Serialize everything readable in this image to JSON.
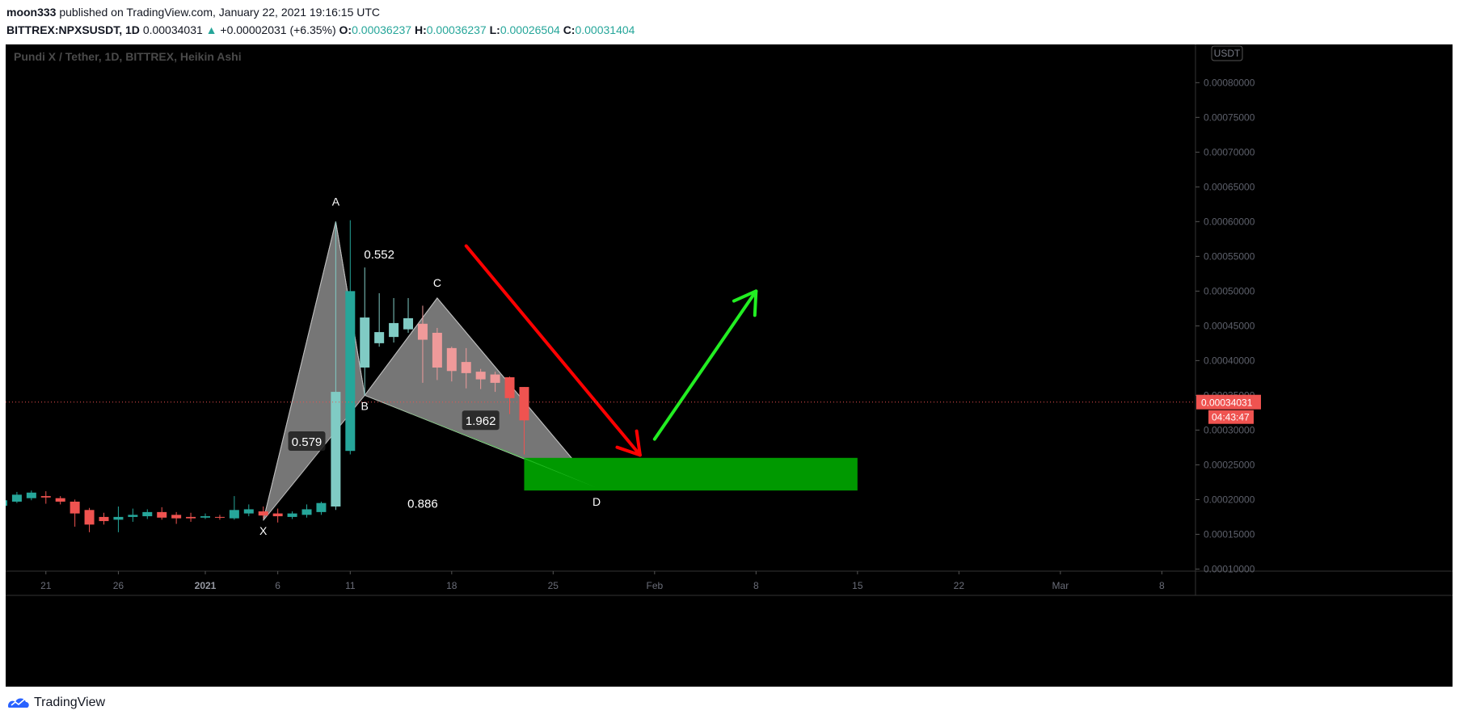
{
  "header": {
    "author": "moon333",
    "published": "published on TradingView.com, January 22, 2021 19:16:15 UTC",
    "symbol": "BITTREX:NPXSUSDT, 1D",
    "price": "0.00034031",
    "change": "+0.00002031 (+6.35%)",
    "o_label": "O:",
    "o_val": "0.00036237",
    "h_label": "H:",
    "h_val": "0.00036237",
    "l_label": "L:",
    "l_val": "0.00026504",
    "c_label": "C:",
    "c_val": "0.00031404"
  },
  "footer": {
    "brand": "TradingView"
  },
  "colors": {
    "background": "#000000",
    "up": "#26a69a",
    "up_light": "#80cbc4",
    "down": "#ef5350",
    "down_light": "#ef9a9a",
    "zone": "#009900",
    "arrow_red": "#ff0000",
    "arrow_green": "#22ee22",
    "pattern": "#9e9e9e"
  },
  "chart_data": {
    "type": "candlestick",
    "title": "Pundi X / Tether, 1D, BITTREX, Heikin Ashi",
    "currency_badge": "USDT",
    "last_price_label": "0.00034031",
    "countdown_label": "04:43:47",
    "x_ticks": [
      {
        "label": "21",
        "date": "2020-12-21"
      },
      {
        "label": "26",
        "date": "2020-12-26"
      },
      {
        "label": "2021",
        "date": "2021-01-01",
        "bold": true
      },
      {
        "label": "6",
        "date": "2021-01-06"
      },
      {
        "label": "11",
        "date": "2021-01-11"
      },
      {
        "label": "18",
        "date": "2021-01-18"
      },
      {
        "label": "25",
        "date": "2021-01-25"
      },
      {
        "label": "Feb",
        "date": "2021-02-01"
      },
      {
        "label": "8",
        "date": "2021-02-08"
      },
      {
        "label": "15",
        "date": "2021-02-15"
      },
      {
        "label": "22",
        "date": "2021-02-22"
      },
      {
        "label": "Mar",
        "date": "2021-03-01"
      },
      {
        "label": "8",
        "date": "2021-03-08"
      }
    ],
    "y_ticks": [
      "0.00080000",
      "0.00075000",
      "0.00070000",
      "0.00065000",
      "0.00060000",
      "0.00055000",
      "0.00050000",
      "0.00045000",
      "0.00040000",
      "0.00035000",
      "0.00030000",
      "0.00025000",
      "0.00020000",
      "0.00015000",
      "0.00010000"
    ],
    "ylim": [
      9.7e-05,
      0.000855
    ],
    "candles": [
      {
        "date": "2020-12-18",
        "o": 0.000191,
        "h": 0.000204,
        "l": 0.000186,
        "c": 0.000199
      },
      {
        "date": "2020-12-19",
        "o": 0.000197,
        "h": 0.000211,
        "l": 0.000195,
        "c": 0.000207
      },
      {
        "date": "2020-12-20",
        "o": 0.000202,
        "h": 0.000213,
        "l": 0.000199,
        "c": 0.00021
      },
      {
        "date": "2020-12-21",
        "o": 0.000205,
        "h": 0.000212,
        "l": 0.000194,
        "c": 0.000203
      },
      {
        "date": "2020-12-22",
        "o": 0.000202,
        "h": 0.000205,
        "l": 0.000193,
        "c": 0.000197
      },
      {
        "date": "2020-12-23",
        "o": 0.000197,
        "h": 0.0002,
        "l": 0.000161,
        "c": 0.00018
      },
      {
        "date": "2020-12-24",
        "o": 0.000185,
        "h": 0.000188,
        "l": 0.000153,
        "c": 0.000164
      },
      {
        "date": "2020-12-25",
        "o": 0.000175,
        "h": 0.000181,
        "l": 0.000164,
        "c": 0.000169
      },
      {
        "date": "2020-12-26",
        "o": 0.000171,
        "h": 0.00019,
        "l": 0.000153,
        "c": 0.000175
      },
      {
        "date": "2020-12-27",
        "o": 0.000175,
        "h": 0.000187,
        "l": 0.000168,
        "c": 0.000178
      },
      {
        "date": "2020-12-28",
        "o": 0.000176,
        "h": 0.000186,
        "l": 0.000172,
        "c": 0.000182
      },
      {
        "date": "2020-12-29",
        "o": 0.000182,
        "h": 0.000189,
        "l": 0.000171,
        "c": 0.000174
      },
      {
        "date": "2020-12-30",
        "o": 0.000178,
        "h": 0.000182,
        "l": 0.000165,
        "c": 0.000173
      },
      {
        "date": "2020-12-31",
        "o": 0.000175,
        "h": 0.000181,
        "l": 0.000168,
        "c": 0.000173
      },
      {
        "date": "2021-01-01",
        "o": 0.000174,
        "h": 0.00018,
        "l": 0.000172,
        "c": 0.000176
      },
      {
        "date": "2021-01-02",
        "o": 0.000175,
        "h": 0.000178,
        "l": 0.000171,
        "c": 0.000174
      },
      {
        "date": "2021-01-03",
        "o": 0.000173,
        "h": 0.000205,
        "l": 0.000171,
        "c": 0.000185
      },
      {
        "date": "2021-01-04",
        "o": 0.00018,
        "h": 0.000193,
        "l": 0.000176,
        "c": 0.000186
      },
      {
        "date": "2021-01-05",
        "o": 0.000183,
        "h": 0.00019,
        "l": 0.000173,
        "c": 0.000177
      },
      {
        "date": "2021-01-06",
        "o": 0.00018,
        "h": 0.000187,
        "l": 0.000167,
        "c": 0.000176
      },
      {
        "date": "2021-01-07",
        "o": 0.000175,
        "h": 0.000183,
        "l": 0.000172,
        "c": 0.00018
      },
      {
        "date": "2021-01-08",
        "o": 0.000178,
        "h": 0.000193,
        "l": 0.000174,
        "c": 0.000186
      },
      {
        "date": "2021-01-09",
        "o": 0.000182,
        "h": 0.000197,
        "l": 0.000178,
        "c": 0.000195
      },
      {
        "date": "2021-01-10",
        "o": 0.00019,
        "h": 0.0006,
        "l": 0.000185,
        "c": 0.000355
      },
      {
        "date": "2021-01-11",
        "o": 0.00027,
        "h": 0.000602,
        "l": 0.000265,
        "c": 0.0005
      },
      {
        "date": "2021-01-12",
        "o": 0.00039,
        "h": 0.000534,
        "l": 0.00035,
        "c": 0.000462
      },
      {
        "date": "2021-01-13",
        "o": 0.000425,
        "h": 0.000497,
        "l": 0.00042,
        "c": 0.000441
      },
      {
        "date": "2021-01-14",
        "o": 0.000434,
        "h": 0.00049,
        "l": 0.000426,
        "c": 0.000454
      },
      {
        "date": "2021-01-15",
        "o": 0.000445,
        "h": 0.00049,
        "l": 0.00044,
        "c": 0.000461
      },
      {
        "date": "2021-01-16",
        "o": 0.000453,
        "h": 0.000479,
        "l": 0.000368,
        "c": 0.00043
      },
      {
        "date": "2021-01-17",
        "o": 0.00044,
        "h": 0.000447,
        "l": 0.000372,
        "c": 0.00039
      },
      {
        "date": "2021-01-18",
        "o": 0.000418,
        "h": 0.00042,
        "l": 0.00037,
        "c": 0.000385
      },
      {
        "date": "2021-01-19",
        "o": 0.000398,
        "h": 0.000418,
        "l": 0.00036,
        "c": 0.000382
      },
      {
        "date": "2021-01-20",
        "o": 0.000384,
        "h": 0.000388,
        "l": 0.000359,
        "c": 0.000373
      },
      {
        "date": "2021-01-21",
        "o": 0.00038,
        "h": 0.000384,
        "l": 0.000355,
        "c": 0.000368
      },
      {
        "date": "2021-01-22",
        "o": 0.000376,
        "h": 0.000377,
        "l": 0.000323,
        "c": 0.000346
      },
      {
        "date": "2021-01-23",
        "o": 0.000362,
        "h": 0.000362,
        "l": 0.000265,
        "c": 0.000314
      }
    ],
    "pattern": {
      "name": "XABCD",
      "points": [
        {
          "label": "X",
          "date": "2021-01-05",
          "price": 0.00017
        },
        {
          "label": "A",
          "date": "2021-01-10",
          "price": 0.0006
        },
        {
          "label": "B",
          "date": "2021-01-12",
          "price": 0.00035
        },
        {
          "label": "C",
          "date": "2021-01-17",
          "price": 0.00049
        },
        {
          "label": "D",
          "date": "2021-01-28",
          "price": 0.000217
        }
      ],
      "ratios": [
        {
          "label": "0.579",
          "date": "2021-01-08",
          "price": 0.000283
        },
        {
          "label": "0.552",
          "date": "2021-01-13",
          "price": 0.000553
        },
        {
          "label": "1.962",
          "date": "2021-01-20",
          "price": 0.000313
        },
        {
          "label": "0.886",
          "date": "2021-01-16",
          "price": 0.000194
        }
      ]
    },
    "zone": {
      "start": "2021-01-23",
      "end": "2021-02-15",
      "top": 0.00026,
      "bottom": 0.000213
    },
    "arrows": [
      {
        "color": "red",
        "from_date": "2021-01-19",
        "from_price": 0.000565,
        "to_date": "2021-01-31",
        "to_price": 0.000264
      },
      {
        "color": "green",
        "from_date": "2021-02-01",
        "from_price": 0.000287,
        "to_date": "2021-02-08",
        "to_price": 0.0005
      }
    ]
  }
}
